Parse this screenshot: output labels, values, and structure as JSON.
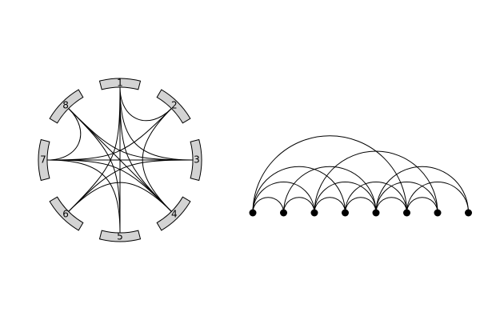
{
  "chord_diagram": {
    "nodes": [
      "1",
      "2",
      "3",
      "4",
      "5",
      "6",
      "7",
      "8"
    ],
    "edges": [
      [
        1,
        4
      ],
      [
        1,
        5
      ],
      [
        1,
        6
      ],
      [
        1,
        3
      ],
      [
        1,
        2
      ],
      [
        2,
        7
      ],
      [
        2,
        4
      ],
      [
        3,
        7
      ],
      [
        3,
        8
      ],
      [
        4,
        7
      ],
      [
        4,
        6
      ],
      [
        4,
        8
      ],
      [
        5,
        8
      ],
      [
        6,
        3
      ],
      [
        7,
        8
      ],
      [
        7,
        5
      ]
    ],
    "segment_fill": "#d3d3d3",
    "line_color": "#000000"
  },
  "arc_diagram": {
    "node_count": 8,
    "edges": [
      [
        1,
        2
      ],
      [
        1,
        3
      ],
      [
        1,
        4
      ],
      [
        1,
        6
      ],
      [
        2,
        3
      ],
      [
        3,
        4
      ],
      [
        3,
        5
      ],
      [
        3,
        7
      ],
      [
        4,
        5
      ],
      [
        4,
        6
      ],
      [
        5,
        6
      ],
      [
        5,
        7
      ],
      [
        5,
        8
      ],
      [
        6,
        7
      ],
      [
        6,
        8
      ],
      [
        2,
        5
      ]
    ],
    "dot_color": "#000000"
  }
}
